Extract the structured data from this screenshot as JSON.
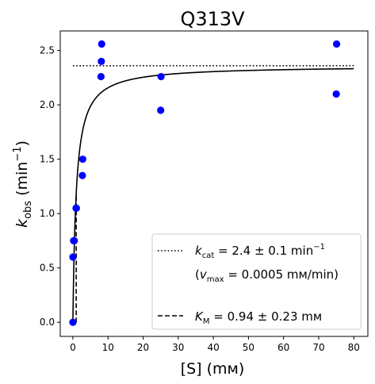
{
  "chart_data": {
    "type": "scatter",
    "title": "Q313V",
    "xlabel": "[S] (mм)",
    "ylabel": {
      "main": "k",
      "sub": "obs",
      "unit_open": " (min",
      "unit_sup": "−1",
      "unit_close": ")"
    },
    "xlim": [
      -3.6,
      84
    ],
    "ylim": [
      -0.13,
      2.68
    ],
    "x_ticks": [
      0,
      10,
      20,
      30,
      40,
      50,
      60,
      70,
      80
    ],
    "x_tick_labels": [
      "0",
      "10",
      "20",
      "30",
      "40",
      "50",
      "60",
      "70",
      "80"
    ],
    "y_ticks": [
      0.0,
      0.5,
      1.0,
      1.5,
      2.0,
      2.5
    ],
    "y_tick_labels": [
      "0.0",
      "0.5",
      "1.0",
      "1.5",
      "2.0",
      "2.5"
    ],
    "grid": false,
    "legend_position": "lower-right",
    "points": {
      "color": "#0000ff",
      "x": [
        0,
        0,
        0.2,
        0.4,
        0.9,
        1.0,
        2.7,
        2.8,
        8.0,
        8.1,
        8.2,
        25.0,
        25.1,
        75.0,
        75.1
      ],
      "y": [
        0.0,
        0.6,
        0.75,
        0.75,
        1.05,
        1.05,
        1.35,
        1.5,
        2.26,
        2.4,
        2.56,
        1.95,
        2.26,
        2.1,
        2.56
      ]
    },
    "fit": {
      "model": "michaelis-menten",
      "kcat": 2.36,
      "km": 0.94,
      "x_range": [
        0,
        80
      ],
      "color": "#000000"
    },
    "kcat_line": {
      "y": 2.36,
      "x_range": [
        0,
        80
      ],
      "style": "dotted"
    },
    "km_line": {
      "x": 0.94,
      "y_range": [
        0,
        1.18
      ],
      "style": "dashed"
    },
    "legend": {
      "kcat": {
        "sym": "k",
        "sub": "cat",
        "text": " = 2.4 ± 0.1 min",
        "sup": "−1"
      },
      "vmax": {
        "open": "(",
        "sym": "v",
        "sub": "max",
        "text": " = 0.0005 mм/min)"
      },
      "km": {
        "sym": "K",
        "sub": "M",
        "text": " = 0.94 ± 0.23 mм"
      }
    }
  }
}
